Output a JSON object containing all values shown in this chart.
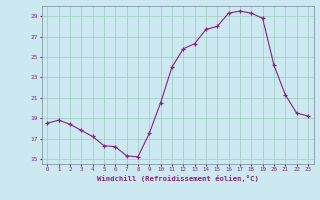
{
  "x": [
    0,
    1,
    2,
    3,
    4,
    5,
    6,
    7,
    8,
    9,
    10,
    11,
    12,
    13,
    14,
    15,
    16,
    17,
    18,
    19,
    20,
    21,
    22,
    23
  ],
  "y": [
    18.5,
    18.8,
    18.4,
    17.8,
    17.2,
    16.3,
    16.2,
    15.3,
    15.2,
    17.5,
    20.5,
    24.0,
    25.8,
    26.3,
    27.7,
    28.0,
    29.3,
    29.5,
    29.3,
    28.8,
    24.2,
    21.3,
    19.5,
    19.2
  ],
  "line_color": "#882288",
  "marker": "+",
  "marker_size": 3,
  "bg_color": "#cce8f0",
  "grid_color": "#99ccbb",
  "xlabel": "Windchill (Refroidissement éolien,°C)",
  "xlabel_color": "#882288",
  "tick_color": "#882288",
  "ylim": [
    14.5,
    30.0
  ],
  "yticks": [
    15,
    17,
    19,
    21,
    23,
    25,
    27,
    29
  ],
  "xlim": [
    -0.5,
    23.5
  ],
  "xticks": [
    0,
    1,
    2,
    3,
    4,
    5,
    6,
    7,
    8,
    9,
    10,
    11,
    12,
    13,
    14,
    15,
    16,
    17,
    18,
    19,
    20,
    21,
    22,
    23
  ]
}
